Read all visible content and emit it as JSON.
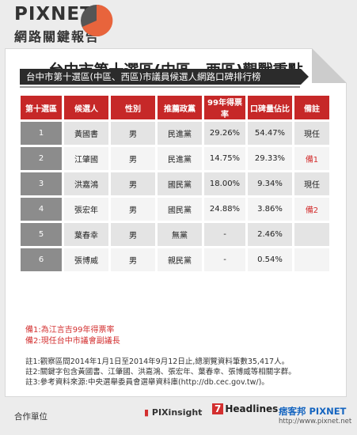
{
  "header": {
    "brand": "PIXNET",
    "subtitle": "網路關鍵報告"
  },
  "title": "台中市第十選區(中區、西區)觀戰重點",
  "banner": "台中市第十選區(中區、西區)市議員候選人網路口碑排行榜",
  "table": {
    "headers": [
      "第十選區",
      "候選人",
      "性別",
      "推薦政黨",
      "99年得票率",
      "口碑量佔比",
      "備註"
    ],
    "rows": [
      [
        "1",
        "黃國書",
        "男",
        "民進黨",
        "29.26%",
        "54.47%",
        "現任"
      ],
      [
        "2",
        "江肇國",
        "男",
        "民進黨",
        "14.75%",
        "29.33%",
        "備1"
      ],
      [
        "3",
        "洪嘉鴻",
        "男",
        "國民黨",
        "18.00%",
        "9.34%",
        "現任"
      ],
      [
        "4",
        "張宏年",
        "男",
        "國民黨",
        "24.88%",
        "3.86%",
        "備2"
      ],
      [
        "5",
        "葉春幸",
        "男",
        "無黨",
        "-",
        "2.46%",
        ""
      ],
      [
        "6",
        "張博威",
        "男",
        "親民黨",
        "-",
        "0.54%",
        ""
      ]
    ]
  },
  "remarks": [
    "備1:為江言吉99年得票率",
    "備2:現任台中市議會副議長"
  ],
  "notes": [
    "註1:觀察區間2014年1月1日至2014年9月12日止,總瀏覽資料筆數35,417人。",
    "註2:關鍵字包含黃國書、江肇國、洪嘉鴻、張宏年、葉春幸、張博威等相關字群。",
    "註3:參考資料來源:中央選舉委員會選舉資料庫(http://db.cec.gov.tw/)。"
  ],
  "footer": {
    "label": "合作單位",
    "partner1": "PIXinsight",
    "partner2_num": "7",
    "partner2": "Headlines",
    "partner3": "痞客邦 PIXNET",
    "partner3_url": "http://www.pixnet.net"
  },
  "colors": {
    "accent": "#c62828",
    "pie": "#e8643c"
  }
}
